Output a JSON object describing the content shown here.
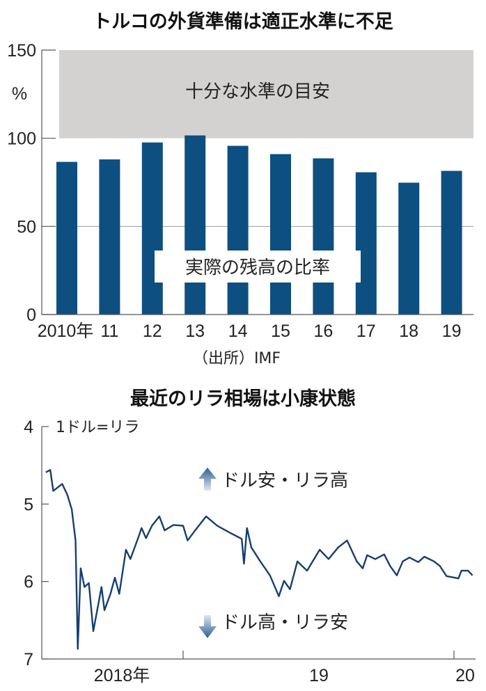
{
  "colors": {
    "bar": "#0d4f80",
    "target_band": "#d4d2d1",
    "line": "#163f6e",
    "axis": "#555555",
    "grid": "#9a9a9a"
  },
  "chart_data": [
    {
      "type": "bar",
      "title": "トルコの外貨準備は適正水準に不足",
      "ylabel": "%",
      "ylim": [
        0,
        150
      ],
      "yticks": [
        "0",
        "50",
        "100",
        "150"
      ],
      "grid": "horizontal at 50",
      "categories": [
        "2010年",
        "11",
        "12",
        "13",
        "14",
        "15",
        "16",
        "17",
        "18",
        "19"
      ],
      "values": [
        86.6,
        88,
        97.6,
        101.6,
        95.7,
        91,
        88.6,
        80.7,
        74.8,
        81.5
      ],
      "series_label": "実際の残高の比率",
      "band": {
        "from": 100,
        "to": 150,
        "label": "十分な水準の目安"
      },
      "source": "（出所）IMF"
    },
    {
      "type": "line",
      "title": "最近のリラ相場は小康状態",
      "ylabel": "1ドル=リラ",
      "ylim": [
        4,
        7
      ],
      "y_inverted": true,
      "yticks": [
        "4",
        "5",
        "6",
        "7"
      ],
      "xticks": [
        "2018年",
        "19",
        "20"
      ],
      "xlim": [
        "2018-06-27",
        "2020-01-28"
      ],
      "annotations": {
        "up": "ドル安・リラ高",
        "down": "ドル高・リラ安"
      },
      "x": [
        "2018-06-30",
        "2018-07-06",
        "2018-07-10",
        "2018-07-22",
        "2018-07-29",
        "2018-08-04",
        "2018-08-07",
        "2018-08-09",
        "2018-08-12",
        "2018-08-16",
        "2018-08-21",
        "2018-08-27",
        "2018-09-02",
        "2018-09-13",
        "2018-09-17",
        "2018-09-25",
        "2018-10-01",
        "2018-10-07",
        "2018-10-16",
        "2018-10-22",
        "2018-11-02",
        "2018-11-06",
        "2018-11-12",
        "2018-11-20",
        "2018-11-30",
        "2018-12-07",
        "2018-12-19",
        "2019-01-01",
        "2019-01-07",
        "2019-01-18",
        "2019-02-01",
        "2019-02-16",
        "2019-03-05",
        "2019-03-21",
        "2019-03-24",
        "2019-03-28",
        "2019-04-03",
        "2019-04-15",
        "2019-04-28",
        "2019-05-10",
        "2019-05-17",
        "2019-05-25",
        "2019-06-04",
        "2019-06-17",
        "2019-07-04",
        "2019-07-16",
        "2019-07-29",
        "2019-08-10",
        "2019-08-23",
        "2019-08-31",
        "2019-09-06",
        "2019-09-17",
        "2019-09-29",
        "2019-10-07",
        "2019-10-16",
        "2019-10-24",
        "2019-11-02",
        "2019-11-14",
        "2019-11-22",
        "2019-12-05",
        "2019-12-13",
        "2019-12-22",
        "2020-01-07",
        "2020-01-11",
        "2020-01-20",
        "2020-01-26"
      ],
      "values": [
        4.59,
        4.56,
        4.83,
        4.74,
        4.88,
        5.07,
        5.31,
        5.47,
        6.87,
        5.83,
        6.07,
        6.02,
        6.64,
        6.07,
        6.37,
        6.16,
        5.95,
        6.16,
        5.59,
        5.71,
        5.42,
        5.31,
        5.44,
        5.28,
        5.16,
        5.34,
        5.27,
        5.28,
        5.47,
        5.33,
        5.16,
        5.28,
        5.37,
        5.45,
        5.77,
        5.31,
        5.56,
        5.74,
        5.92,
        6.19,
        5.99,
        6.1,
        5.74,
        5.86,
        5.59,
        5.71,
        5.56,
        5.47,
        5.74,
        5.83,
        5.66,
        5.71,
        5.65,
        5.8,
        5.92,
        5.74,
        5.69,
        5.75,
        5.68,
        5.74,
        5.8,
        5.93,
        5.96,
        5.86,
        5.86,
        5.92
      ]
    }
  ]
}
